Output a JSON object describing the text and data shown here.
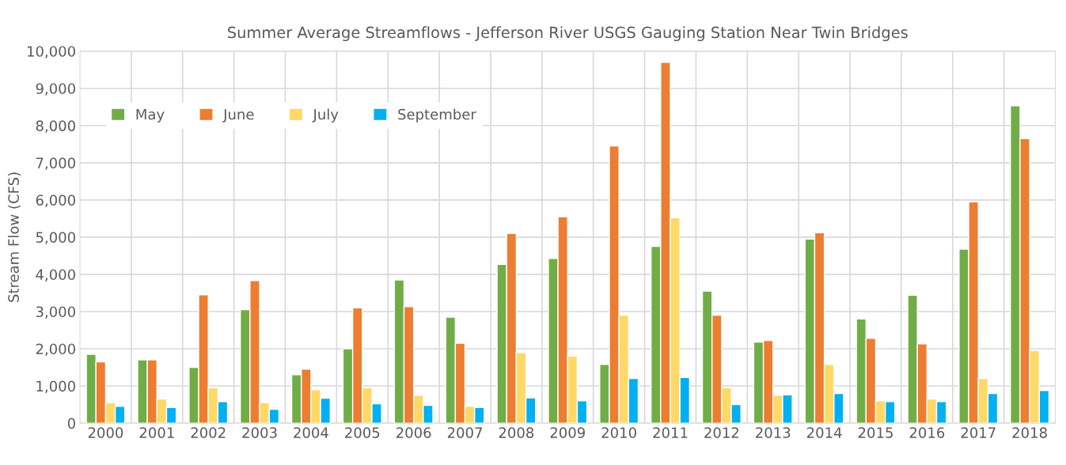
{
  "chart_data": {
    "type": "bar",
    "title": "Summer Average Streamflows - Jefferson River USGS Gauging Station Near Twin Bridges",
    "ylabel": "Stream Flow (CFS)",
    "categories": [
      "2000",
      "2001",
      "2002",
      "2003",
      "2004",
      "2005",
      "2006",
      "2007",
      "2008",
      "2009",
      "2010",
      "2011",
      "2012",
      "2013",
      "2014",
      "2015",
      "2016",
      "2017",
      "2018"
    ],
    "series": [
      {
        "name": "May",
        "color": "#70ad47",
        "values": [
          1850,
          1700,
          1500,
          3050,
          1300,
          2000,
          3850,
          2850,
          4270,
          4430,
          1580,
          4750,
          3550,
          2180,
          4950,
          2800,
          3440,
          4680,
          8530
        ]
      },
      {
        "name": "June",
        "color": "#ed7d31",
        "values": [
          1650,
          1700,
          3450,
          3830,
          1450,
          3100,
          3130,
          2150,
          5100,
          5550,
          7450,
          9700,
          2900,
          2220,
          5120,
          2280,
          2130,
          5950,
          7650
        ]
      },
      {
        "name": "July",
        "color": "#ffd966",
        "values": [
          550,
          650,
          950,
          550,
          900,
          950,
          750,
          450,
          1900,
          1800,
          2900,
          5520,
          950,
          750,
          1580,
          600,
          650,
          1200,
          1950
        ]
      },
      {
        "name": "September",
        "color": "#00b0f0",
        "values": [
          450,
          420,
          580,
          370,
          670,
          520,
          480,
          420,
          680,
          600,
          1200,
          1230,
          500,
          760,
          800,
          580,
          580,
          800,
          880
        ]
      }
    ],
    "ylim": [
      0,
      10000
    ],
    "yticks": [
      {
        "value": 0,
        "label": "0"
      },
      {
        "value": 1000,
        "label": "1,000"
      },
      {
        "value": 2000,
        "label": "2,000"
      },
      {
        "value": 3000,
        "label": "3,000"
      },
      {
        "value": 4000,
        "label": "4,000"
      },
      {
        "value": 5000,
        "label": "5,000"
      },
      {
        "value": 6000,
        "label": "6,000"
      },
      {
        "value": 7000,
        "label": "7,000"
      },
      {
        "value": 8000,
        "label": "8,000"
      },
      {
        "value": 9000,
        "label": "9,000"
      },
      {
        "value": 10000,
        "label": "10,000"
      }
    ],
    "grid": true,
    "legend": "top left"
  }
}
